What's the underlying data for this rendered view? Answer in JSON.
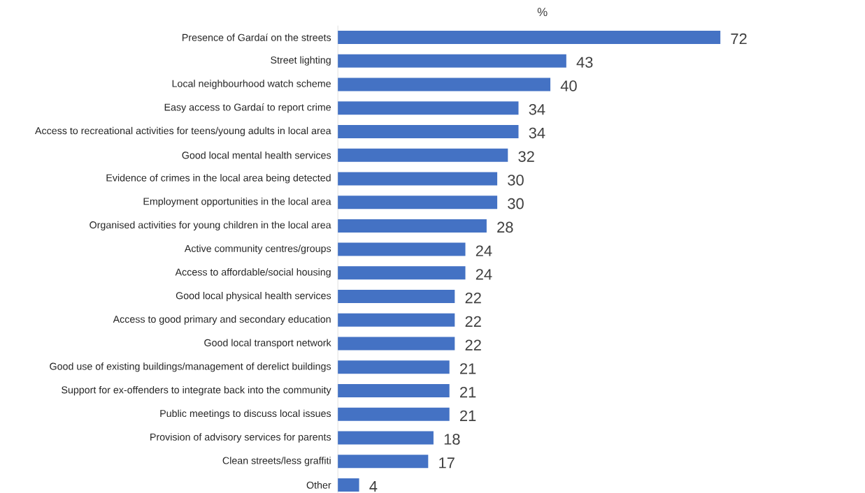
{
  "chart_data": {
    "type": "bar",
    "orientation": "horizontal",
    "title": "%",
    "categories": [
      "Presence of Gardaí on the streets",
      "Street lighting",
      "Local neighbourhood watch scheme",
      "Easy access to Gardaí to report crime",
      "Access to recreational activities for teens/young adults in local area",
      "Good local mental health services",
      "Evidence of crimes in the local area being detected",
      "Employment opportunities in the local area",
      "Organised activities for young children in the local area",
      "Active community centres/groups",
      "Access to affordable/social housing",
      "Good local physical health services",
      "Access to good primary and secondary education",
      "Good local transport network",
      "Good use of existing buildings/management of derelict buildings",
      "Support for ex-offenders to integrate back into the community",
      "Public meetings to discuss local issues",
      "Provision of advisory services for parents",
      "Clean streets/less graffiti",
      "Other"
    ],
    "values": [
      72,
      43,
      40,
      34,
      34,
      32,
      30,
      30,
      28,
      24,
      24,
      22,
      22,
      22,
      21,
      21,
      21,
      18,
      17,
      4
    ],
    "color": "#4472c4",
    "data_labels": true
  }
}
